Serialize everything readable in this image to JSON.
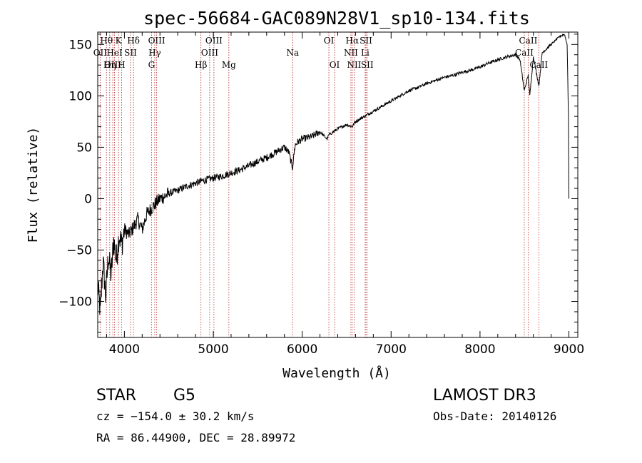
{
  "chart_data": {
    "type": "line",
    "title": "spec-56684-GAC089N28V1_sp10-134.fits",
    "xlabel": "Wavelength (Å)",
    "ylabel": "Flux (relative)",
    "xlim": [
      3700,
      9100
    ],
    "ylim": [
      -135,
      162
    ],
    "x_ticks": [
      4000,
      5000,
      6000,
      7000,
      8000,
      9000
    ],
    "x_tick_labels": [
      "4000",
      "5000",
      "6000",
      "7000",
      "8000",
      "9000"
    ],
    "y_ticks": [
      -100,
      -50,
      0,
      50,
      100,
      150
    ],
    "y_tick_labels": [
      "−100",
      "−50",
      "0",
      "50",
      "100",
      "150"
    ],
    "series": [
      {
        "name": "flux",
        "x": [
          3700,
          3730,
          3760,
          3790,
          3820,
          3850,
          3880,
          3910,
          3940,
          3970,
          4000,
          4050,
          4100,
          4150,
          4200,
          4250,
          4300,
          4350,
          4400,
          4450,
          4500,
          4600,
          4700,
          4800,
          4900,
          5000,
          5100,
          5200,
          5300,
          5400,
          5500,
          5600,
          5700,
          5800,
          5850,
          5890,
          5920,
          5950,
          6000,
          6100,
          6200,
          6280,
          6300,
          6400,
          6500,
          6562,
          6600,
          6700,
          6800,
          6900,
          7000,
          7100,
          7200,
          7300,
          7400,
          7500,
          7600,
          7700,
          7800,
          7900,
          8000,
          8100,
          8200,
          8300,
          8400,
          8450,
          8498,
          8542,
          8560,
          8600,
          8662,
          8700,
          8800,
          8900,
          8950,
          8980,
          8995,
          9000
        ],
        "y": [
          -85,
          -110,
          -60,
          -95,
          -55,
          -75,
          -40,
          -60,
          -35,
          -45,
          -30,
          -35,
          -28,
          -20,
          -30,
          -15,
          -10,
          -5,
          0,
          2,
          5,
          8,
          12,
          15,
          18,
          20,
          22,
          25,
          28,
          32,
          36,
          40,
          45,
          50,
          45,
          30,
          52,
          55,
          58,
          60,
          65,
          58,
          62,
          68,
          72,
          70,
          75,
          80,
          85,
          90,
          95,
          100,
          105,
          108,
          112,
          115,
          118,
          120,
          123,
          125,
          128,
          132,
          135,
          138,
          140,
          135,
          105,
          120,
          100,
          138,
          110,
          142,
          150,
          158,
          160,
          150,
          80,
          0
        ]
      }
    ],
    "spectral_lines": [
      {
        "label": "Hθ",
        "x": 3798,
        "row": 1
      },
      {
        "label": "OII",
        "x": 3727,
        "row": 2
      },
      {
        "label": "OIII",
        "x": 3869,
        "row": 3
      },
      {
        "label": "K",
        "x": 3934,
        "row": 1
      },
      {
        "label": "HeI",
        "x": 3889,
        "row": 2
      },
      {
        "label": "Hη",
        "x": 3835,
        "row": 3
      },
      {
        "label": "Hδ",
        "x": 4102,
        "row": 1
      },
      {
        "label": "SII",
        "x": 4069,
        "row": 2
      },
      {
        "label": "H",
        "x": 3968,
        "row": 3
      },
      {
        "label": "OIII",
        "x": 4363,
        "row": 1
      },
      {
        "label": "Hγ",
        "x": 4341,
        "row": 2
      },
      {
        "label": "G",
        "x": 4305,
        "row": 3
      },
      {
        "label": "OIII",
        "x": 5007,
        "row": 1
      },
      {
        "label": "OIII",
        "x": 4959,
        "row": 2
      },
      {
        "label": "Hβ",
        "x": 4861,
        "row": 3
      },
      {
        "label": "Mg",
        "x": 5175,
        "row": 3
      },
      {
        "label": "Na",
        "x": 5893,
        "row": 2
      },
      {
        "label": "OI",
        "x": 6300,
        "row": 1
      },
      {
        "label": "OI",
        "x": 6364,
        "row": 3
      },
      {
        "label": "Hα",
        "x": 6563,
        "row": 1
      },
      {
        "label": "NII",
        "x": 6548,
        "row": 2
      },
      {
        "label": "NII",
        "x": 6584,
        "row": 3
      },
      {
        "label": "SII",
        "x": 6717,
        "row": 1
      },
      {
        "label": "Li",
        "x": 6708,
        "row": 2
      },
      {
        "label": "SII",
        "x": 6731,
        "row": 3
      },
      {
        "label": "CaII",
        "x": 8542,
        "row": 1
      },
      {
        "label": "CaII",
        "x": 8498,
        "row": 2
      },
      {
        "label": "CaII",
        "x": 8662,
        "row": 3
      }
    ],
    "line_color": "#000000",
    "marker_color": "#b22222"
  },
  "info": {
    "object_type": "STAR",
    "subclass": "G5",
    "survey": "LAMOST DR3",
    "cz": "cz = −154.0 ± 30.2 km/s",
    "obs_date": "Obs-Date: 20140126",
    "coords": "RA =  86.44900, DEC =  28.89972"
  }
}
